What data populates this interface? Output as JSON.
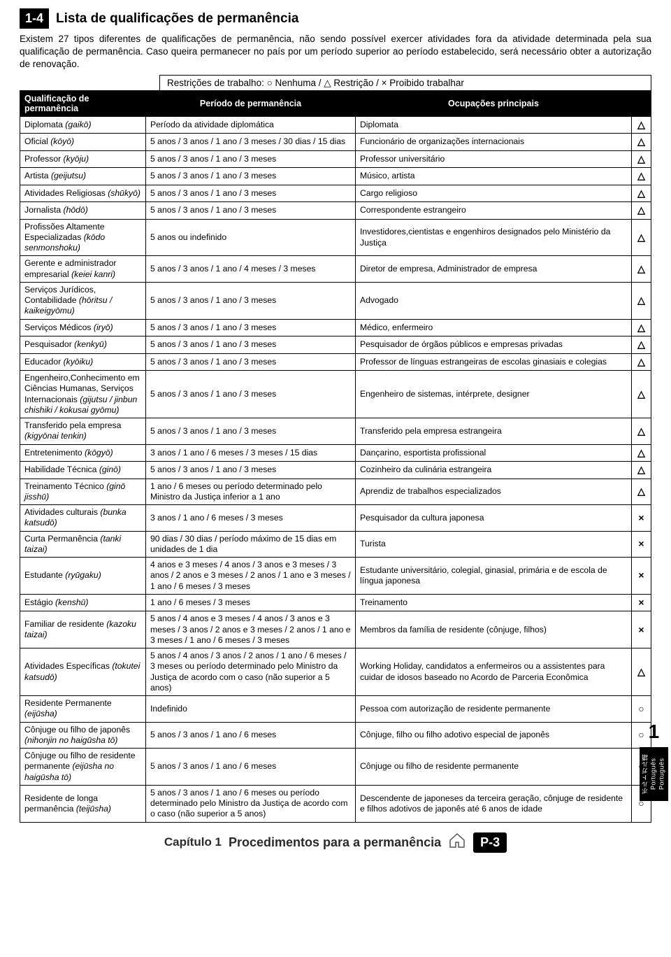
{
  "section": {
    "num": "1-4",
    "title": "Lista de qualificações de permanência"
  },
  "intro": "Existem 27 tipos diferentes de qualificações de permanência, não sendo possível exercer atividades fora da atividade determinada pela sua qualificação de permanência. Caso queira permanecer no país por um período superior ao período estabelecido, será necessário obter a autorização de renovação.",
  "legend": "Restrições de trabalho: ○ Nenhuma / △ Restrição / × Proibido trabalhar",
  "symbols": {
    "none": "○",
    "restrict": "△",
    "forbid": "×"
  },
  "headers": {
    "c1": "Qualificação de permanência",
    "c2": "Período de permanência",
    "c3": "Ocupações principais"
  },
  "rows": [
    {
      "q": "Diplomata (gaikō)",
      "p": "Período da atividade diplomática",
      "o": "Diplomata",
      "s": "△"
    },
    {
      "q": "Oficial (kōyō)",
      "p": "5 anos / 3 anos / 1 ano / 3 meses / 30 dias / 15 dias",
      "o": "Funcionário de organizações internacionais",
      "s": "△"
    },
    {
      "q": "Professor (kyōju)",
      "p": "5 anos / 3 anos / 1 ano / 3 meses",
      "o": "Professor universitário",
      "s": "△"
    },
    {
      "q": "Artista (geijutsu)",
      "p": "5 anos / 3 anos / 1 ano / 3 meses",
      "o": "Músico, artista",
      "s": "△"
    },
    {
      "q": "Atividades Religiosas (shūkyō)",
      "p": "5 anos / 3 anos / 1 ano / 3 meses",
      "o": "Cargo religioso",
      "s": "△"
    },
    {
      "q": "Jornalista (hōdō)",
      "p": "5 anos / 3 anos / 1 ano / 3 meses",
      "o": "Correspondente estrangeiro",
      "s": "△"
    },
    {
      "q": "Profissões Altamente Especializadas (kōdo senmonshoku)",
      "p": "5 anos ou indefinido",
      "o": "Investidores,cientistas e engenhiros designados pelo Ministério da Justiça",
      "s": "△"
    },
    {
      "q": "Gerente e administrador empresarial (keiei kanri)",
      "p": "5 anos / 3 anos / 1 ano / 4 meses / 3 meses",
      "o": "Diretor de empresa, Administrador de empresa",
      "s": "△"
    },
    {
      "q": "Serviços Jurídicos, Contabilidade (hōritsu / kaikeigyōmu)",
      "p": "5 anos / 3 anos / 1 ano / 3 meses",
      "o": "Advogado",
      "s": "△"
    },
    {
      "q": "Serviços Médicos (iryō)",
      "p": "5 anos / 3 anos / 1 ano / 3 meses",
      "o": "Médico, enfermeiro",
      "s": "△"
    },
    {
      "q": "Pesquisador (kenkyū)",
      "p": "5 anos / 3 anos / 1 ano / 3 meses",
      "o": "Pesquisador de órgãos públicos e empresas privadas",
      "s": "△"
    },
    {
      "q": "Educador (kyōiku)",
      "p": "5 anos / 3 anos / 1 ano / 3 meses",
      "o": "Professor de línguas estrangeiras de escolas ginasiais e colegias",
      "s": "△"
    },
    {
      "q": "Engenheiro,Conhecimento em Ciências Humanas, Serviços Internacionais (gijutsu / jinbun chishiki / kokusai gyōmu)",
      "p": "5 anos / 3 anos / 1 ano / 3 meses",
      "o": "Engenheiro de sistemas, intérprete, designer",
      "s": "△"
    },
    {
      "q": "Transferido pela empresa (kigyōnai tenkin)",
      "p": "5 anos / 3 anos / 1 ano / 3 meses",
      "o": "Transferido pela empresa estrangeira",
      "s": "△"
    },
    {
      "q": "Entretenimento (kōgyō)",
      "p": "3 anos / 1 ano / 6 meses / 3 meses / 15 dias",
      "o": "Dançarino, esportista profissional",
      "s": "△"
    },
    {
      "q": "Habilidade Técnica (ginō)",
      "p": "5 anos / 3 anos / 1 ano / 3 meses",
      "o": "Cozinheiro da culinária estrangeira",
      "s": "△"
    },
    {
      "q": "Treinamento Técnico (ginō jisshū)",
      "p": "1 ano / 6 meses ou período determinado pelo Ministro da Justiça inferior a 1 ano",
      "o": "Aprendiz de trabalhos especializados",
      "s": "△"
    },
    {
      "q": "Atividades culturais (bunka katsudō)",
      "p": "3 anos / 1 ano / 6 meses / 3 meses",
      "o": "Pesquisador da cultura japonesa",
      "s": "×"
    },
    {
      "q": "Curta Permanência (tanki taizai)",
      "p": "90 dias / 30 dias / período máximo de 15 dias em unidades de 1 dia",
      "o": "Turista",
      "s": "×"
    },
    {
      "q": "Estudante (ryūgaku)",
      "p": "4 anos e 3 meses / 4 anos / 3 anos e 3 meses / 3 anos / 2 anos e 3 meses / 2 anos / 1 ano e 3 meses / 1 ano / 6 meses / 3 meses",
      "o": "Estudante universitário, colegial, ginasial, primária e de escola de língua japonesa",
      "s": "×"
    },
    {
      "q": "Estágio (kenshū)",
      "p": "1 ano / 6 meses / 3 meses",
      "o": "Treinamento",
      "s": "×"
    },
    {
      "q": "Familiar de residente (kazoku taizai)",
      "p": "5 anos / 4 anos e 3 meses / 4 anos / 3 anos e 3 meses / 3 anos / 2 anos e 3 meses / 2 anos / 1 ano e 3 meses / 1 ano / 6 meses / 3 meses",
      "o": "Membros da família de residente (cônjuge, filhos)",
      "s": "×"
    },
    {
      "q": "Atividades Específicas (tokutei katsudō)",
      "p": "5 anos / 4 anos / 3 anos / 2 anos / 1 ano / 6 meses / 3 meses ou período determinado pelo Ministro da Justiça de acordo com o caso (não superior a 5 anos)",
      "o": "Working Holiday, candidatos a enfermeiros ou a assistentes para cuidar de idosos baseado no Acordo de Parceria Econômica",
      "s": "△"
    },
    {
      "q": "Residente Permanente (eijūsha)",
      "p": "Indefinido",
      "o": "Pessoa com autorização de residente permanente",
      "s": "○"
    },
    {
      "q": "Cônjuge ou filho de japonês (nihonjin no haigūsha tō)",
      "p": "5 anos / 3 anos / 1 ano / 6 meses",
      "o": "Cônjuge, filho ou filho adotivo especial de japonês",
      "s": "○"
    },
    {
      "q": "Cônjuge ou filho de residente permanente (eijūsha no haigūsha tō)",
      "p": "5 anos / 3 anos / 1 ano / 6 meses",
      "o": "Cônjuge ou filho de residente permanente",
      "s": "○"
    },
    {
      "q": "Residente de longa permanência (teijūsha)",
      "p": "5 anos / 3 anos / 1 ano / 6 meses ou período determinado pelo Ministro da Justiça de acordo com o caso (não superior a 5 anos)",
      "o": "Descendente de japoneses da terceira geração, cônjuge de residente e filhos adotivos de japonês até 6 anos de idade",
      "s": "○"
    }
  ],
  "footer": {
    "chapter": "Capítulo 1",
    "title": "Procedimentos para a permanência",
    "page": "P-3"
  },
  "sidetab": {
    "num": "1",
    "lang1": "ポルトガル語",
    "lang2": "Português",
    "lang3": "Português"
  }
}
